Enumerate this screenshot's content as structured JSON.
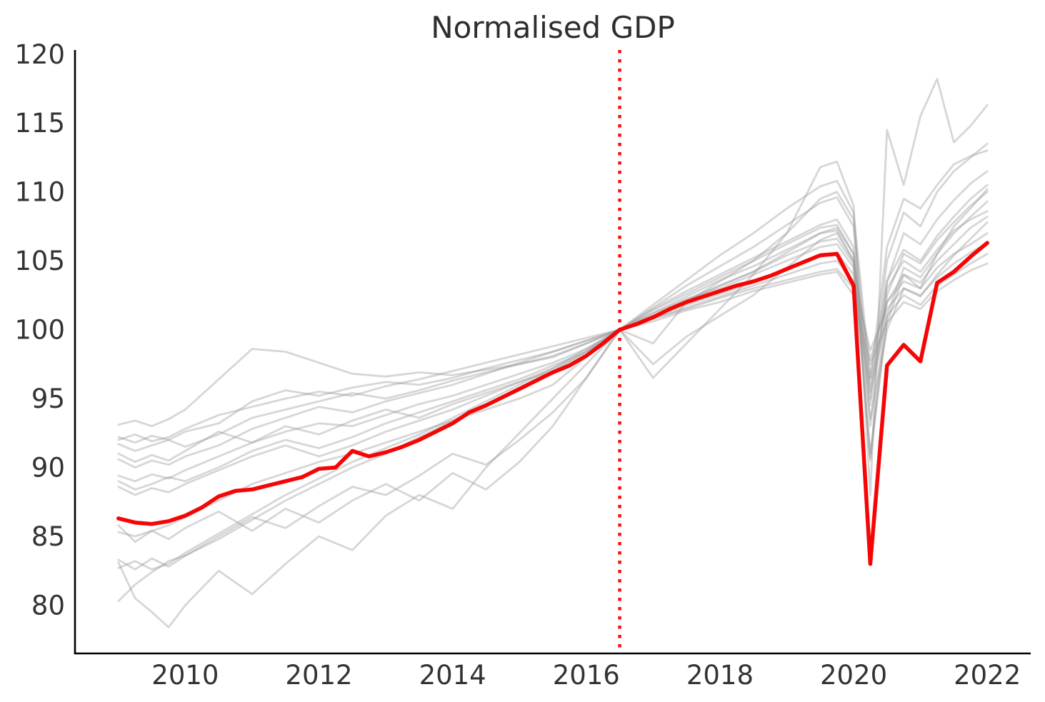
{
  "figure": {
    "title": "Normalised GDP"
  },
  "colors": {
    "background": "#ffffff",
    "spine": "#000000",
    "tick_label": "#333333",
    "title": "#2e2e2e",
    "highlight": "#f50505",
    "reference_line": "#ff0e0e",
    "background_lines": "#999999"
  },
  "chart_data": {
    "type": "line",
    "title": "Normalised GDP",
    "xlabel": "",
    "ylabel": "",
    "grid": false,
    "legend": "none",
    "xlim": [
      2008.35,
      2022.65
    ],
    "ylim": [
      76.5,
      120.3
    ],
    "x_tick_values": [
      2010,
      2012,
      2014,
      2016,
      2018,
      2020,
      2022
    ],
    "x_tick_labels": [
      "2010",
      "2012",
      "2014",
      "2016",
      "2018",
      "2020",
      "2022"
    ],
    "y_tick_values": [
      80,
      85,
      90,
      95,
      100,
      105,
      110,
      115,
      120
    ],
    "y_tick_labels": [
      "80",
      "85",
      "90",
      "95",
      "100",
      "105",
      "110",
      "115",
      "120"
    ],
    "reference_line": {
      "x": 2016.5,
      "style": "dotted",
      "color": "#ff0e0e",
      "meaning": "normalisation point (GDP = 100, mid-2016)"
    },
    "highlight_series": {
      "name": "highlighted-country-gdp",
      "color": "#f50505",
      "line_width": 5.5,
      "x": [
        2009.0,
        2009.25,
        2009.5,
        2009.75,
        2010.0,
        2010.25,
        2010.5,
        2010.75,
        2011.0,
        2011.25,
        2011.5,
        2011.75,
        2012.0,
        2012.25,
        2012.5,
        2012.75,
        2013.0,
        2013.25,
        2013.5,
        2013.75,
        2014.0,
        2014.25,
        2014.5,
        2014.75,
        2015.0,
        2015.25,
        2015.5,
        2015.75,
        2016.0,
        2016.25,
        2016.5,
        2016.75,
        2017.0,
        2017.25,
        2017.5,
        2017.75,
        2018.0,
        2018.25,
        2018.5,
        2018.75,
        2019.0,
        2019.25,
        2019.5,
        2019.75,
        2020.0,
        2020.25,
        2020.5,
        2020.75,
        2021.0,
        2021.25,
        2021.5,
        2021.75,
        2022.0
      ],
      "values": [
        86.3,
        86.0,
        85.9,
        86.1,
        86.5,
        87.1,
        87.9,
        88.3,
        88.4,
        88.7,
        89.0,
        89.3,
        89.9,
        90.0,
        91.2,
        90.8,
        91.1,
        91.5,
        92.0,
        92.6,
        93.2,
        94.0,
        94.5,
        95.1,
        95.7,
        96.3,
        96.9,
        97.4,
        98.1,
        99.0,
        100.0,
        100.4,
        100.9,
        101.5,
        102.0,
        102.4,
        102.8,
        103.2,
        103.5,
        103.9,
        104.4,
        104.9,
        105.4,
        105.5,
        103.2,
        83.0,
        97.4,
        98.9,
        97.7,
        103.4,
        104.2,
        105.3,
        106.3
      ]
    },
    "background_series_style": {
      "color": "#999999",
      "opacity": 0.4,
      "line_width": 2.8
    },
    "background_x": [
      2009.0,
      2009.25,
      2009.5,
      2009.75,
      2010.0,
      2010.5,
      2011.0,
      2011.5,
      2012.0,
      2012.5,
      2013.0,
      2013.5,
      2014.0,
      2014.5,
      2015.0,
      2015.5,
      2016.0,
      2016.5,
      2017.0,
      2017.5,
      2018.0,
      2018.5,
      2019.0,
      2019.5,
      2019.75,
      2020.0,
      2020.25,
      2020.5,
      2020.75,
      2021.0,
      2021.25,
      2021.5,
      2021.75,
      2022.0
    ],
    "background_series": [
      {
        "name": "country-01",
        "values": [
          93.1,
          93.4,
          93.0,
          93.5,
          94.2,
          96.4,
          98.6,
          98.4,
          97.6,
          96.8,
          96.6,
          96.9,
          96.7,
          97.1,
          97.5,
          98.0,
          99.0,
          100.0,
          100.8,
          101.5,
          102.3,
          103.0,
          103.6,
          104.2,
          104.4,
          103.0,
          95.5,
          101.0,
          102.5,
          101.8,
          103.2,
          104.0,
          104.8,
          105.5
        ]
      },
      {
        "name": "country-02",
        "values": [
          92.2,
          91.8,
          92.3,
          92.0,
          92.6,
          93.2,
          94.8,
          95.6,
          95.2,
          95.8,
          96.2,
          96.0,
          96.5,
          97.2,
          97.8,
          98.4,
          99.2,
          100.0,
          100.9,
          101.8,
          102.6,
          103.4,
          104.5,
          105.3,
          105.6,
          104.0,
          96.0,
          102.0,
          103.5,
          103.0,
          104.5,
          105.5,
          106.2,
          107.0
        ]
      },
      {
        "name": "country-03",
        "values": [
          92.0,
          92.4,
          91.9,
          92.2,
          92.8,
          93.8,
          94.4,
          95.0,
          95.5,
          95.2,
          95.9,
          96.4,
          97.0,
          97.6,
          98.2,
          98.8,
          99.4,
          100.0,
          100.6,
          101.4,
          102.0,
          102.8,
          103.4,
          104.0,
          104.2,
          102.5,
          97.5,
          100.5,
          102.0,
          101.5,
          102.8,
          103.6,
          104.3,
          104.8
        ]
      },
      {
        "name": "country-04",
        "values": [
          91.7,
          91.2,
          91.6,
          92.0,
          91.5,
          92.4,
          93.6,
          94.2,
          94.8,
          95.4,
          95.0,
          95.6,
          96.3,
          96.9,
          97.5,
          98.1,
          99.0,
          100.0,
          101.0,
          102.0,
          103.2,
          104.2,
          105.6,
          107.0,
          107.4,
          105.5,
          94.5,
          103.0,
          105.0,
          104.2,
          105.8,
          107.2,
          108.0,
          108.6
        ]
      },
      {
        "name": "country-05",
        "values": [
          91.0,
          90.4,
          90.9,
          90.5,
          91.2,
          92.6,
          91.8,
          93.0,
          92.4,
          93.4,
          94.2,
          93.6,
          94.6,
          95.4,
          96.2,
          97.0,
          98.2,
          100.0,
          101.5,
          102.8,
          104.0,
          105.2,
          106.4,
          107.6,
          108.0,
          106.0,
          90.7,
          102.5,
          105.5,
          104.8,
          106.5,
          107.8,
          109.0,
          110.0
        ]
      },
      {
        "name": "country-06",
        "values": [
          89.4,
          89.0,
          89.5,
          89.2,
          89.8,
          90.8,
          91.8,
          92.6,
          93.2,
          93.0,
          93.8,
          94.6,
          95.2,
          96.0,
          96.8,
          97.6,
          98.6,
          100.0,
          101.2,
          102.4,
          103.6,
          104.6,
          105.8,
          107.0,
          107.2,
          105.0,
          90.5,
          101.0,
          104.5,
          103.8,
          105.5,
          107.0,
          108.2,
          109.3
        ]
      },
      {
        "name": "country-07",
        "values": [
          89.0,
          88.4,
          88.8,
          89.3,
          89.0,
          90.0,
          91.2,
          92.0,
          91.4,
          92.2,
          93.2,
          94.0,
          94.8,
          95.6,
          96.4,
          97.4,
          98.4,
          100.0,
          101.0,
          102.2,
          103.0,
          104.0,
          105.0,
          106.0,
          106.2,
          104.5,
          93.5,
          100.0,
          103.0,
          102.4,
          104.0,
          105.4,
          106.6,
          107.8
        ]
      },
      {
        "name": "country-08",
        "values": [
          85.3,
          85.0,
          85.4,
          85.8,
          86.4,
          87.6,
          88.8,
          89.6,
          90.4,
          91.0,
          91.8,
          92.6,
          93.4,
          94.2,
          95.0,
          96.0,
          98.0,
          100.0,
          101.4,
          102.6,
          103.8,
          105.0,
          106.2,
          107.4,
          107.6,
          105.5,
          96.5,
          103.5,
          105.8,
          105.0,
          106.8,
          108.2,
          109.5,
          110.5
        ]
      },
      {
        "name": "country-09",
        "values": [
          83.3,
          82.6,
          83.4,
          82.8,
          83.6,
          85.0,
          86.4,
          85.6,
          87.2,
          88.6,
          88.0,
          89.4,
          91.0,
          90.2,
          92.0,
          94.0,
          96.5,
          100.0,
          99.0,
          102.0,
          103.5,
          105.0,
          107.0,
          109.5,
          110.0,
          108.0,
          95.0,
          105.0,
          108.5,
          107.5,
          110.0,
          111.5,
          112.5,
          113.5
        ]
      },
      {
        "name": "country-10",
        "values": [
          80.3,
          81.5,
          82.4,
          83.2,
          83.6,
          84.8,
          86.2,
          87.6,
          88.8,
          90.0,
          91.0,
          92.2,
          93.4,
          94.6,
          95.8,
          97.0,
          98.4,
          100.0,
          101.8,
          103.6,
          105.4,
          107.0,
          108.8,
          110.4,
          110.8,
          108.5,
          96.5,
          106.0,
          109.5,
          108.8,
          110.5,
          112.0,
          112.6,
          113.0
        ]
      },
      {
        "name": "country-11",
        "values": [
          83.1,
          80.5,
          79.5,
          78.4,
          80.0,
          82.5,
          80.8,
          83.0,
          85.0,
          84.0,
          86.5,
          88.0,
          87.0,
          90.0,
          92.5,
          95.0,
          97.5,
          100.0,
          96.5,
          99.0,
          101.5,
          104.0,
          107.0,
          111.8,
          112.2,
          109.0,
          88.0,
          114.5,
          110.5,
          115.5,
          118.2,
          113.6,
          114.8,
          116.3
        ]
      },
      {
        "name": "country-12",
        "values": [
          82.7,
          83.2,
          82.6,
          83.0,
          83.8,
          85.2,
          86.6,
          88.0,
          89.2,
          90.4,
          91.4,
          92.4,
          93.6,
          94.8,
          96.0,
          97.2,
          98.6,
          100.0,
          101.6,
          103.2,
          104.6,
          106.0,
          107.6,
          109.2,
          109.6,
          107.5,
          93.0,
          103.5,
          107.0,
          106.2,
          108.0,
          109.4,
          110.6,
          111.5
        ]
      },
      {
        "name": "country-13",
        "values": [
          88.6,
          88.0,
          88.5,
          88.2,
          88.8,
          89.8,
          90.8,
          91.6,
          90.8,
          91.6,
          92.6,
          93.4,
          94.2,
          95.2,
          96.2,
          97.2,
          98.4,
          100.0,
          101.2,
          102.2,
          103.2,
          104.2,
          105.4,
          106.4,
          106.6,
          104.8,
          97.8,
          102.0,
          104.0,
          103.4,
          105.0,
          106.2,
          107.4,
          108.2
        ]
      },
      {
        "name": "country-14",
        "values": [
          90.6,
          90.0,
          90.5,
          90.2,
          90.8,
          91.6,
          92.8,
          93.6,
          94.4,
          94.0,
          94.8,
          95.4,
          96.0,
          96.8,
          97.6,
          98.4,
          99.2,
          100.0,
          100.8,
          101.6,
          102.4,
          103.2,
          104.0,
          104.8,
          105.0,
          103.5,
          98.5,
          101.5,
          103.0,
          102.5,
          103.8,
          104.8,
          105.6,
          106.3
        ]
      },
      {
        "name": "country-15",
        "values": [
          85.8,
          84.6,
          85.4,
          84.8,
          85.6,
          86.8,
          85.4,
          87.0,
          86.0,
          87.6,
          88.8,
          87.6,
          89.6,
          88.4,
          90.4,
          93.0,
          96.5,
          100.0,
          97.5,
          99.5,
          101.0,
          102.5,
          104.5,
          106.5,
          107.0,
          105.0,
          91.0,
          100.5,
          104.0,
          103.0,
          105.5,
          107.5,
          108.8,
          110.2
        ]
      }
    ]
  }
}
